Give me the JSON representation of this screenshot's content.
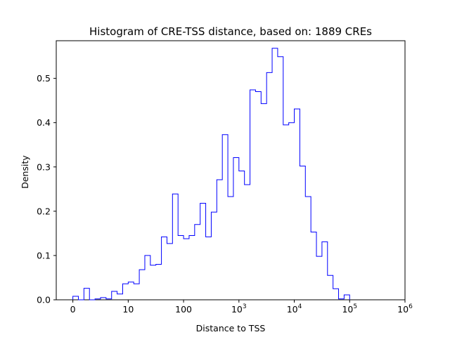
{
  "chart_data": {
    "type": "step-histogram",
    "title": "Histogram of CRE-TSS distance, based on: 1889 CREs",
    "xlabel": "Distance to TSS",
    "ylabel": "Density",
    "xscale": "symlog",
    "xlim": [
      -0.3,
      6.0
    ],
    "ylim": [
      0,
      0.585
    ],
    "color": "#0000ff",
    "grid": false,
    "legend": "none",
    "x_ticks": [
      {
        "value": 0,
        "label": "0",
        "sup": ""
      },
      {
        "value": 1,
        "label": "10",
        "sup": ""
      },
      {
        "value": 2,
        "label": "100",
        "sup": ""
      },
      {
        "value": 3,
        "label": "10",
        "sup": "3"
      },
      {
        "value": 4,
        "label": "10",
        "sup": "4"
      },
      {
        "value": 5,
        "label": "10",
        "sup": "5"
      },
      {
        "value": 6,
        "label": "10",
        "sup": "6"
      }
    ],
    "y_ticks": [
      {
        "value": 0.0,
        "label": "0.0"
      },
      {
        "value": 0.1,
        "label": "0.1"
      },
      {
        "value": 0.2,
        "label": "0.2"
      },
      {
        "value": 0.3,
        "label": "0.3"
      },
      {
        "value": 0.4,
        "label": "0.4"
      },
      {
        "value": 0.5,
        "label": "0.5"
      }
    ],
    "bin_start": 0.0,
    "bin_width": 0.1,
    "values": [
      0.008,
      0.0,
      0.026,
      0.0,
      0.002,
      0.005,
      0.002,
      0.019,
      0.013,
      0.036,
      0.04,
      0.036,
      0.068,
      0.1,
      0.078,
      0.08,
      0.142,
      0.127,
      0.239,
      0.145,
      0.138,
      0.145,
      0.17,
      0.218,
      0.142,
      0.198,
      0.271,
      0.373,
      0.233,
      0.321,
      0.291,
      0.26,
      0.474,
      0.47,
      0.443,
      0.513,
      0.568,
      0.549,
      0.395,
      0.4,
      0.431,
      0.302,
      0.233,
      0.153,
      0.098,
      0.131,
      0.055,
      0.025,
      0.002,
      0.011
    ]
  }
}
